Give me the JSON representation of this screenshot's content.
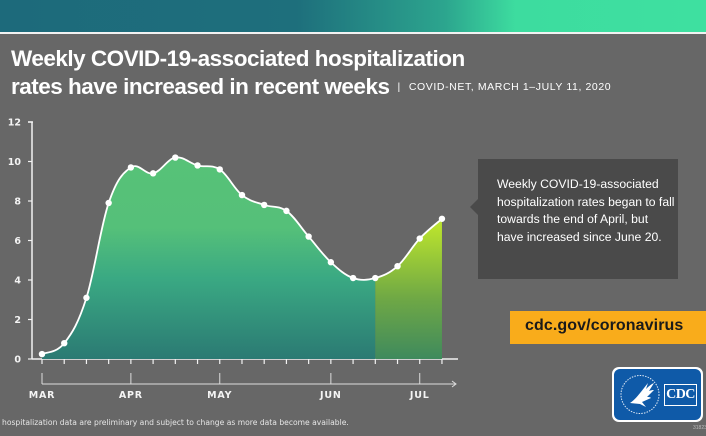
{
  "header": {
    "title_line1": "Weekly COVID-19-associated hospitalization",
    "title_line2": "rates have increased in recent weeks",
    "separator": "|",
    "subtitle": "COVID-NET, MARCH 1–JULY 11, 2020"
  },
  "callout": {
    "text": "Weekly COVID-19-associated hospitalization rates began to fall towards the end of April, but have increased since June 20."
  },
  "url_badge": {
    "text": "cdc.gov/coronavirus",
    "color": "#f9ac1b"
  },
  "logo": {
    "text": "CDC",
    "icon": "hhs-eagle-icon",
    "color": "#0f5aa8"
  },
  "footnote": "hospitalization data are preliminary and subject to change as more data become available.",
  "code": "318233",
  "colors": {
    "background": "#676767",
    "fill_top": "#57c278",
    "fill_bottom": "#2b7a73",
    "highlight_top": "#c7e88a",
    "highlight_mid": "#b8e12e",
    "highlight_bottom": "#3f8a5d",
    "line": "#ffffff"
  },
  "chart_data": {
    "type": "area",
    "title": "Weekly COVID-19-associated hospitalization rates have increased in recent weeks",
    "subtitle": "COVID-NET, MARCH 1–JULY 11, 2020",
    "xlabel": "",
    "ylabel": "",
    "ylim": [
      0,
      12
    ],
    "yticks": [
      0,
      2,
      4,
      6,
      8,
      10,
      12
    ],
    "ytick_labels": [
      "0",
      "2",
      "4",
      "6",
      "8",
      "10",
      "12"
    ],
    "x_week_index": [
      0,
      1,
      2,
      3,
      4,
      5,
      6,
      7,
      8,
      9,
      10,
      11,
      12,
      13,
      14,
      15,
      16,
      17,
      18
    ],
    "month_labels": [
      {
        "label": "MAR",
        "week": 0
      },
      {
        "label": "APR",
        "week": 4
      },
      {
        "label": "MAY",
        "week": 8
      },
      {
        "label": "JUN",
        "week": 13
      },
      {
        "label": "JUL",
        "week": 17
      }
    ],
    "series": [
      {
        "name": "Weekly hospitalization rate",
        "values": [
          0.25,
          0.8,
          3.1,
          7.9,
          9.7,
          9.4,
          10.2,
          9.8,
          9.6,
          8.3,
          7.8,
          7.5,
          6.2,
          4.9,
          4.1,
          4.1,
          4.7,
          6.1,
          7.1
        ]
      }
    ],
    "highlight_from_week": 15,
    "highlight_note": "increase since June 20",
    "grid": false,
    "legend": "none"
  }
}
